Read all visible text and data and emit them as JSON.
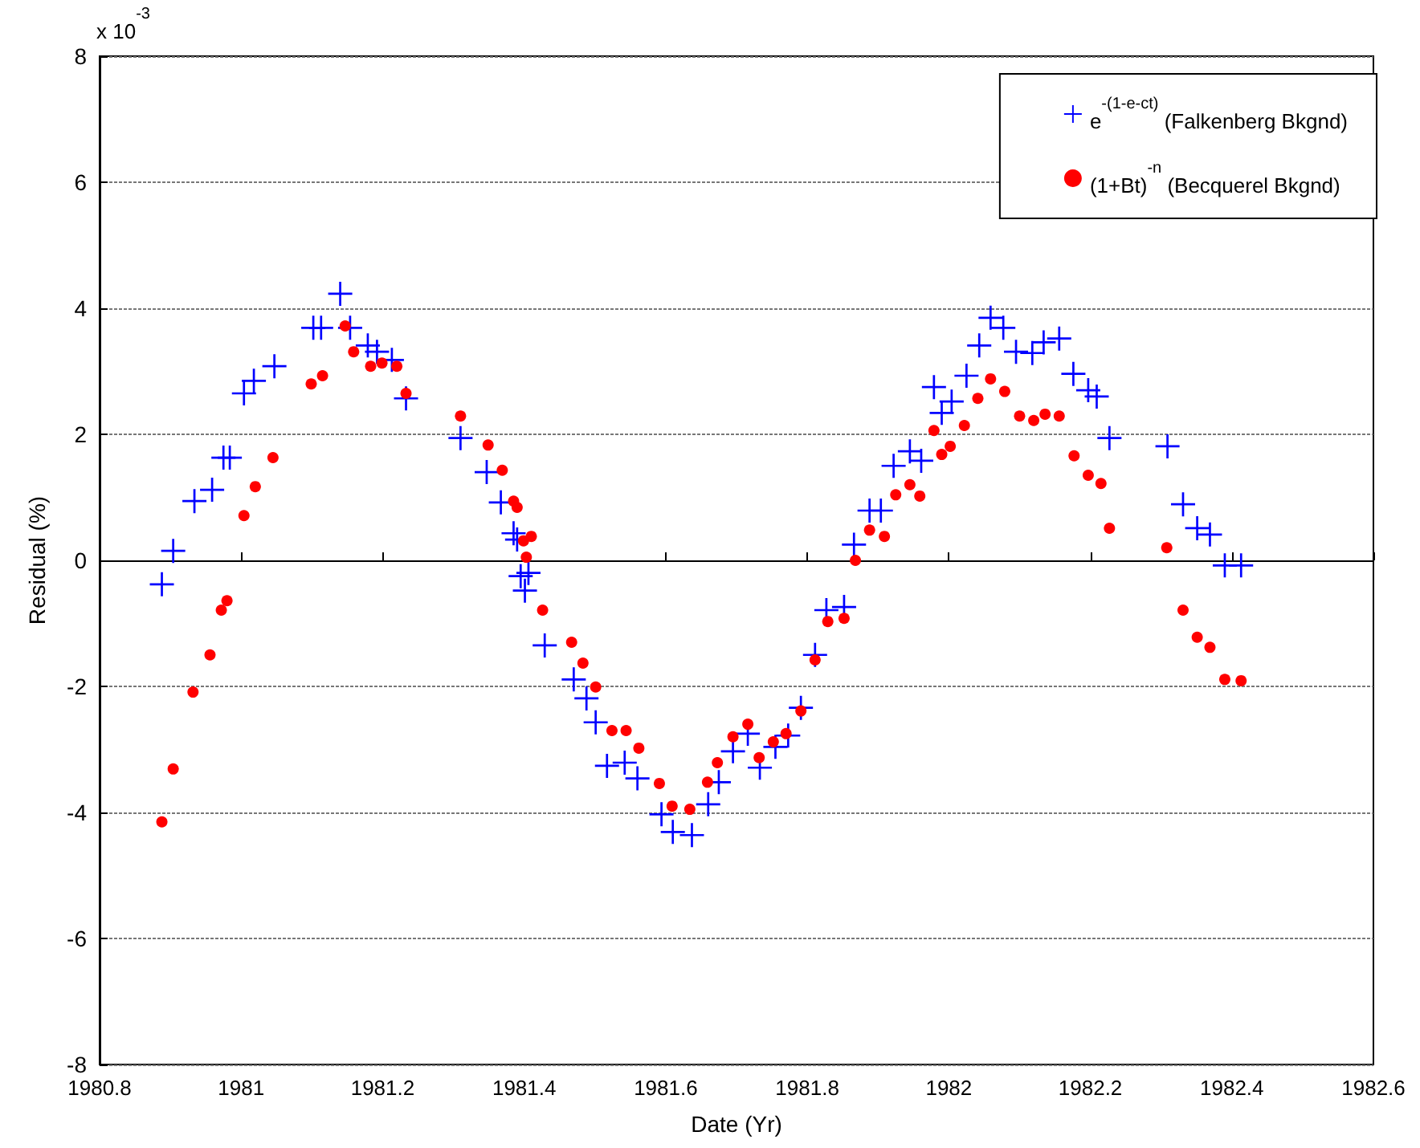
{
  "chart_data": {
    "type": "scatter",
    "xlabel": "Date (Yr)",
    "ylabel": "Residual (%)",
    "annotations": [
      "x 10$^{-3}$"
    ],
    "xlim": [
      1980.8,
      1982.6
    ],
    "xticks": [
      1980.8,
      1981,
      1981.2,
      1981.4,
      1981.6,
      1981.8,
      1982,
      1982.2,
      1982.4,
      1982.6
    ],
    "ylim": [
      -8,
      8
    ],
    "yticks": [
      -8,
      -6,
      -4,
      -2,
      0,
      2,
      4,
      6,
      8
    ],
    "grid": "y",
    "legend": "top right",
    "series": [
      {
        "name": "e$^{-(1-e}$$^{-ct}$$^{)}$ (Falkenberg Bkgnd)",
        "color": "#0000ff",
        "marker": "cross",
        "x": [
          1980.888,
          1980.904,
          1980.934,
          1980.959,
          1980.975,
          1980.984,
          1981.004,
          1981.018,
          1981.047,
          1981.102,
          1981.113,
          1981.14,
          1981.154,
          1981.179,
          1981.192,
          1981.213,
          1981.233,
          1981.31,
          1981.347,
          1981.367,
          1981.385,
          1981.39,
          1981.395,
          1981.401,
          1981.406,
          1981.429,
          1981.47,
          1981.488,
          1981.501,
          1981.517,
          1981.542,
          1981.56,
          1981.594,
          1981.61,
          1981.637,
          1981.66,
          1981.675,
          1981.695,
          1981.716,
          1981.733,
          1981.755,
          1981.773,
          1981.791,
          1981.811,
          1981.827,
          1981.852,
          1981.866,
          1981.888,
          1981.904,
          1981.922,
          1981.945,
          1981.961,
          1981.979,
          1981.99,
          1982.004,
          1982.025,
          1982.043,
          1982.059,
          1982.077,
          1982.095,
          1982.118,
          1982.134,
          1982.156,
          1982.176,
          1982.197,
          1982.209,
          1982.227,
          1982.309,
          1982.331,
          1982.351,
          1982.369,
          1982.39,
          1982.413
        ],
        "values": [
          -0.38,
          0.15,
          0.94,
          1.12,
          1.63,
          1.63,
          2.65,
          2.85,
          3.08,
          3.69,
          3.69,
          4.23,
          3.69,
          3.41,
          3.31,
          3.18,
          2.57,
          1.94,
          1.4,
          0.92,
          0.43,
          0.33,
          -0.25,
          -0.48,
          -0.2,
          -1.35,
          -1.89,
          -2.19,
          -2.57,
          -3.26,
          -3.21,
          -3.46,
          -4.03,
          -4.31,
          -4.36,
          -3.87,
          -3.52,
          -3.03,
          -2.75,
          -3.29,
          -2.96,
          -2.78,
          -2.34,
          -1.5,
          -0.79,
          -0.74,
          0.25,
          0.79,
          0.79,
          1.5,
          1.73,
          1.58,
          2.75,
          2.34,
          2.52,
          2.93,
          3.41,
          3.85,
          3.69,
          3.31,
          3.29,
          3.46,
          3.52,
          2.96,
          2.7,
          2.6,
          1.94,
          1.81,
          0.89,
          0.51,
          0.41,
          -0.08,
          -0.08
        ]
      },
      {
        "name": "(1+Bt)$^{-n}$ (Becquerel Bkgnd)",
        "color": "#ff0000",
        "marker": "circle",
        "x": [
          1980.888,
          1980.904,
          1980.932,
          1980.956,
          1980.972,
          1980.98,
          1981.004,
          1981.02,
          1981.045,
          1981.099,
          1981.115,
          1981.147,
          1981.159,
          1981.183,
          1981.199,
          1981.22,
          1981.233,
          1981.31,
          1981.349,
          1981.369,
          1981.385,
          1981.39,
          1981.399,
          1981.41,
          1981.403,
          1981.426,
          1981.467,
          1981.483,
          1981.501,
          1981.524,
          1981.544,
          1981.562,
          1981.591,
          1981.609,
          1981.634,
          1981.659,
          1981.673,
          1981.695,
          1981.716,
          1981.732,
          1981.752,
          1981.77,
          1981.791,
          1981.811,
          1981.829,
          1981.852,
          1981.868,
          1981.888,
          1981.909,
          1981.925,
          1981.945,
          1981.959,
          1981.979,
          1981.99,
          1982.002,
          1982.022,
          1982.041,
          1982.059,
          1982.079,
          1982.1,
          1982.12,
          1982.136,
          1982.156,
          1982.177,
          1982.197,
          1982.215,
          1982.227,
          1982.308,
          1982.331,
          1982.351,
          1982.369,
          1982.39,
          1982.413
        ],
        "values": [
          -4.15,
          -3.31,
          -2.09,
          -1.5,
          -0.79,
          -0.64,
          0.71,
          1.17,
          1.63,
          2.8,
          2.93,
          3.72,
          3.31,
          3.08,
          3.13,
          3.08,
          2.65,
          2.29,
          1.83,
          1.43,
          0.94,
          0.84,
          0.31,
          0.38,
          0.05,
          -0.79,
          -1.3,
          -1.63,
          -2.01,
          -2.7,
          -2.7,
          -2.98,
          -3.54,
          -3.9,
          -3.95,
          -3.52,
          -3.21,
          -2.8,
          -2.6,
          -3.13,
          -2.88,
          -2.75,
          -2.39,
          -1.58,
          -0.97,
          -0.92,
          0.0,
          0.48,
          0.38,
          1.04,
          1.2,
          1.02,
          2.06,
          1.68,
          1.81,
          2.14,
          2.57,
          2.88,
          2.68,
          2.29,
          2.22,
          2.32,
          2.29,
          1.66,
          1.35,
          1.22,
          0.51,
          0.2,
          -0.79,
          -1.22,
          -1.38,
          -1.89,
          -1.91
        ]
      }
    ]
  }
}
